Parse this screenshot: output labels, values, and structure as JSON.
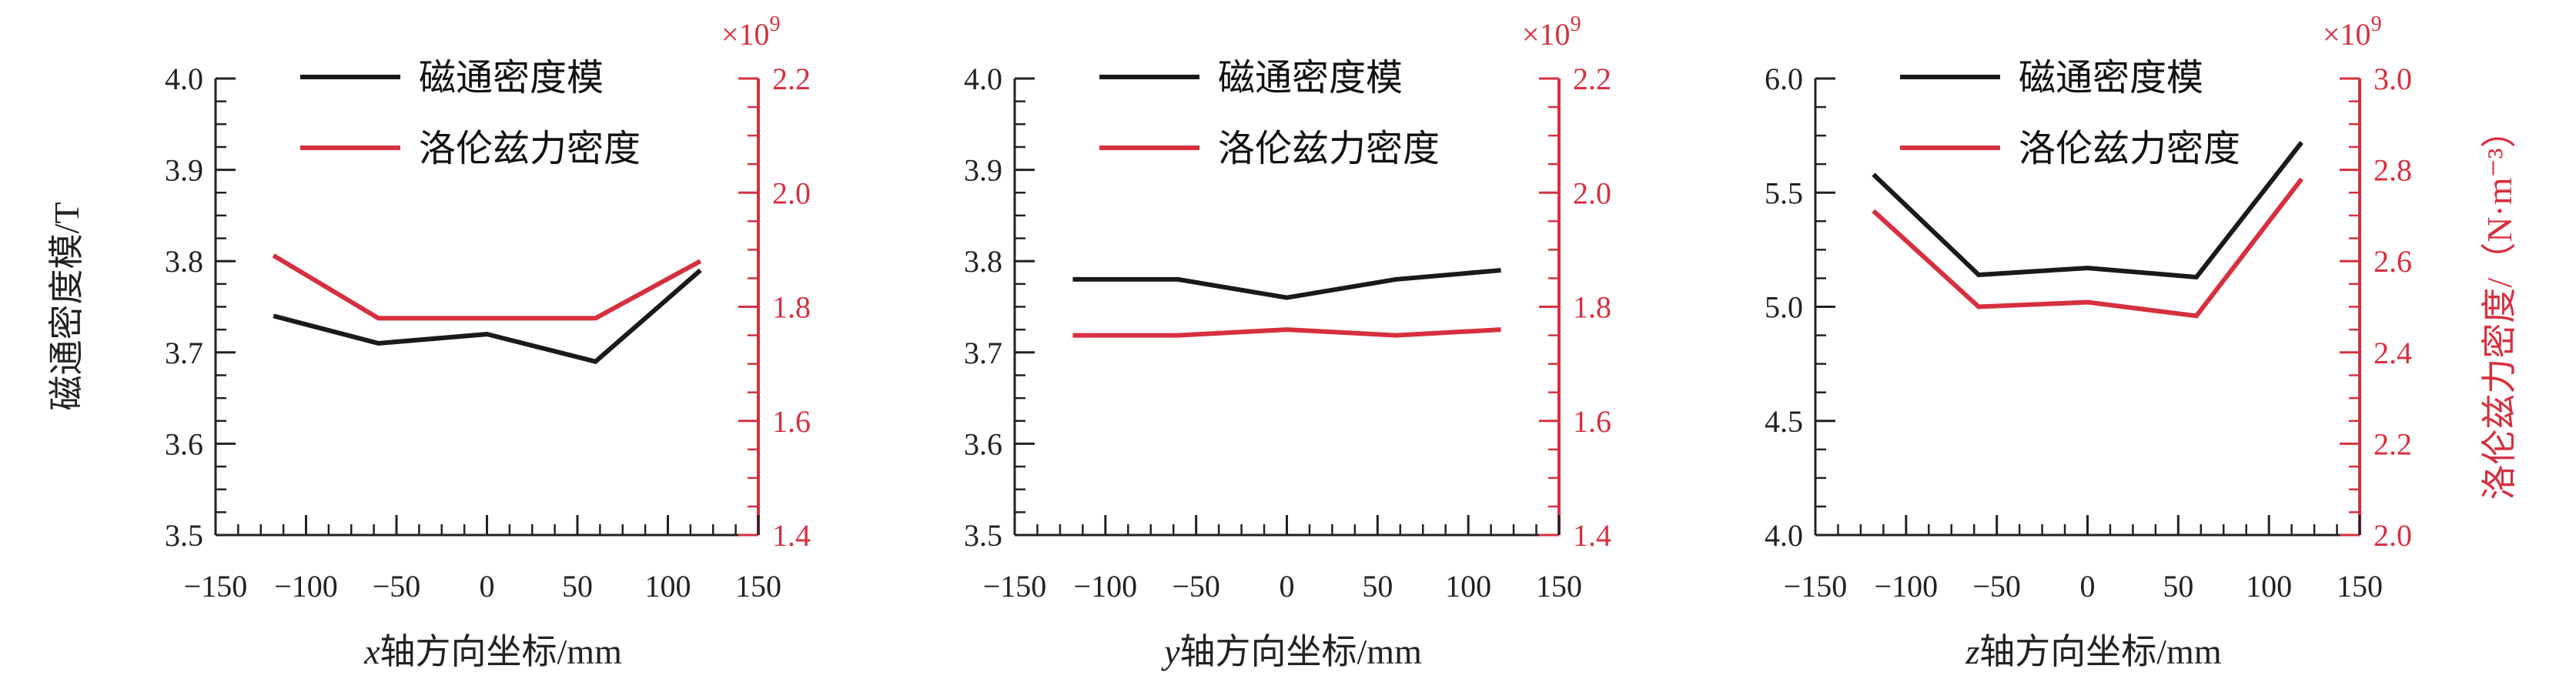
{
  "colors": {
    "left_axis": "#222222",
    "right_axis": "#d6303f",
    "black_series": "#1a1a1a",
    "red_series": "#d6303f"
  },
  "y_left_label": "磁通密度模/T",
  "y_right_label": "洛伦兹力密度/（N·m⁻³）",
  "multiplier_base": "×10",
  "multiplier_exp": "9",
  "chart_data": [
    {
      "type": "line",
      "xlabel_italic": "x",
      "xlabel_rest": "轴方向坐标/mm",
      "x_ticks": [
        "−150",
        "−100",
        "−50",
        "0",
        "50",
        "100",
        "150"
      ],
      "xlim": [
        -150,
        150
      ],
      "ylim_left": [
        3.5,
        4.0
      ],
      "ylim_right": [
        1.4,
        2.2
      ],
      "y_left_ticks": [
        "3.5",
        "3.6",
        "3.7",
        "3.8",
        "3.9",
        "4.0"
      ],
      "y_right_ticks": [
        "1.4",
        "1.6",
        "1.8",
        "2.0",
        "2.2"
      ],
      "series": [
        {
          "name": "磁通密度模",
          "axis": "left",
          "x": [
            -118,
            -60,
            0,
            60,
            118
          ],
          "values": [
            3.74,
            3.71,
            3.72,
            3.69,
            3.79
          ]
        },
        {
          "name": "洛伦兹力密度",
          "axis": "right",
          "x": [
            -118,
            -60,
            0,
            60,
            118
          ],
          "values": [
            1.89,
            1.78,
            1.78,
            1.78,
            1.88
          ]
        }
      ]
    },
    {
      "type": "line",
      "xlabel_italic": "y",
      "xlabel_rest": "轴方向坐标/mm",
      "x_ticks": [
        "−150",
        "−100",
        "−50",
        "0",
        "50",
        "100",
        "150"
      ],
      "xlim": [
        -150,
        150
      ],
      "ylim_left": [
        3.5,
        4.0
      ],
      "ylim_right": [
        1.4,
        2.2
      ],
      "y_left_ticks": [
        "3.5",
        "3.6",
        "3.7",
        "3.8",
        "3.9",
        "4.0"
      ],
      "y_right_ticks": [
        "1.4",
        "1.6",
        "1.8",
        "2.0",
        "2.2"
      ],
      "series": [
        {
          "name": "磁通密度模",
          "axis": "left",
          "x": [
            -118,
            -60,
            0,
            60,
            118
          ],
          "values": [
            3.78,
            3.78,
            3.76,
            3.78,
            3.79
          ]
        },
        {
          "name": "洛伦兹力密度",
          "axis": "right",
          "x": [
            -118,
            -60,
            0,
            60,
            118
          ],
          "values": [
            1.75,
            1.75,
            1.76,
            1.75,
            1.76
          ]
        }
      ]
    },
    {
      "type": "line",
      "xlabel_italic": "z",
      "xlabel_rest": "轴方向坐标/mm",
      "x_ticks": [
        "−150",
        "−100",
        "−50",
        "0",
        "50",
        "100",
        "150"
      ],
      "xlim": [
        -150,
        150
      ],
      "ylim_left": [
        4.0,
        6.0
      ],
      "ylim_right": [
        2.0,
        3.0
      ],
      "y_left_ticks": [
        "4.0",
        "4.5",
        "5.0",
        "5.5",
        "6.0"
      ],
      "y_right_ticks": [
        "2.0",
        "2.2",
        "2.4",
        "2.6",
        "2.8",
        "3.0"
      ],
      "series": [
        {
          "name": "磁通密度模",
          "axis": "left",
          "x": [
            -118,
            -60,
            0,
            60,
            118
          ],
          "values": [
            5.58,
            5.14,
            5.17,
            5.13,
            5.72
          ]
        },
        {
          "name": "洛伦兹力密度",
          "axis": "right",
          "x": [
            -118,
            -60,
            0,
            60,
            118
          ],
          "values": [
            2.71,
            2.5,
            2.51,
            2.48,
            2.78
          ]
        }
      ]
    }
  ]
}
